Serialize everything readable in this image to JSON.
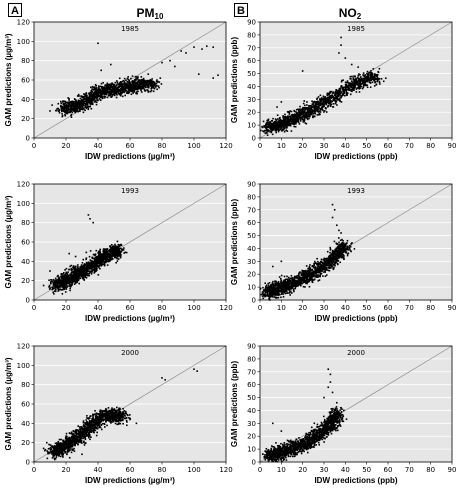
{
  "panels": {
    "a": {
      "tag": "A",
      "title": "PM",
      "title_sub": "10"
    },
    "b": {
      "tag": "B",
      "title": "NO",
      "title_sub": "2"
    }
  },
  "colors": {
    "plot_bg": "#e6e6e6",
    "points": "#000000",
    "grid": "#ffffff",
    "diagonal": "#8c8c8c"
  },
  "chart_data": [
    {
      "id": "pm-1985",
      "type": "scatter",
      "title": "1985",
      "xlabel": "IDW predictions (µg/m³)",
      "ylabel": "GAM predictions (µg/m³)",
      "xlim": [
        0,
        120
      ],
      "ylim": [
        0,
        120
      ],
      "xticks": [
        0,
        20,
        40,
        60,
        80,
        100,
        120
      ],
      "yticks": [
        0,
        20,
        40,
        60,
        80,
        100,
        120
      ],
      "grid": true,
      "reference_line": "1:1",
      "cloud": [
        [
          18,
          30
        ],
        [
          25,
          32
        ],
        [
          30,
          36
        ],
        [
          35,
          40
        ],
        [
          40,
          46
        ],
        [
          45,
          50
        ],
        [
          50,
          50
        ],
        [
          55,
          52
        ],
        [
          60,
          54
        ],
        [
          65,
          55
        ],
        [
          70,
          56
        ],
        [
          75,
          56
        ]
      ],
      "outliers": [
        [
          40,
          98
        ],
        [
          48,
          76
        ],
        [
          42,
          70
        ],
        [
          80,
          78
        ],
        [
          85,
          80
        ],
        [
          88,
          74
        ],
        [
          92,
          90
        ],
        [
          95,
          88
        ],
        [
          100,
          94
        ],
        [
          105,
          92
        ],
        [
          108,
          95
        ],
        [
          112,
          94
        ],
        [
          103,
          66
        ],
        [
          115,
          65
        ],
        [
          112,
          62
        ],
        [
          10,
          28
        ]
      ]
    },
    {
      "id": "no2-1985",
      "type": "scatter",
      "title": "1985",
      "xlabel": "IDW predictions (ppb)",
      "ylabel": "GAM predictions (ppb)",
      "xlim": [
        0,
        90
      ],
      "ylim": [
        0,
        90
      ],
      "xticks": [
        0,
        10,
        20,
        30,
        40,
        50,
        60,
        70,
        80,
        90
      ],
      "yticks": [
        0,
        10,
        20,
        30,
        40,
        50,
        60,
        70,
        80,
        90
      ],
      "grid": true,
      "reference_line": "1:1",
      "cloud": [
        [
          4,
          8
        ],
        [
          8,
          10
        ],
        [
          12,
          12
        ],
        [
          16,
          15
        ],
        [
          20,
          18
        ],
        [
          25,
          22
        ],
        [
          30,
          27
        ],
        [
          35,
          32
        ],
        [
          40,
          38
        ],
        [
          45,
          42
        ],
        [
          50,
          46
        ],
        [
          55,
          48
        ]
      ],
      "outliers": [
        [
          38,
          78
        ],
        [
          38,
          72
        ],
        [
          37,
          66
        ],
        [
          40,
          62
        ],
        [
          43,
          57
        ],
        [
          46,
          55
        ],
        [
          20,
          52
        ],
        [
          52,
          50
        ],
        [
          56,
          46
        ],
        [
          58,
          44
        ],
        [
          8,
          24
        ],
        [
          10,
          28
        ]
      ]
    },
    {
      "id": "pm-1993",
      "type": "scatter",
      "title": "1993",
      "xlabel": "IDW predictions (µg/m³)",
      "ylabel": "GAM predictions (µg/m³)",
      "xlim": [
        0,
        120
      ],
      "ylim": [
        0,
        120
      ],
      "xticks": [
        0,
        20,
        40,
        60,
        80,
        100,
        120
      ],
      "yticks": [
        0,
        20,
        40,
        60,
        80,
        100,
        120
      ],
      "grid": true,
      "reference_line": "1:1",
      "cloud": [
        [
          14,
          15
        ],
        [
          18,
          18
        ],
        [
          22,
          22
        ],
        [
          26,
          26
        ],
        [
          30,
          30
        ],
        [
          34,
          33
        ],
        [
          38,
          38
        ],
        [
          42,
          42
        ],
        [
          46,
          46
        ],
        [
          50,
          50
        ],
        [
          53,
          51
        ]
      ],
      "outliers": [
        [
          34,
          88
        ],
        [
          35,
          84
        ],
        [
          37,
          80
        ],
        [
          10,
          30
        ],
        [
          22,
          48
        ],
        [
          26,
          45
        ],
        [
          52,
          55
        ],
        [
          56,
          52
        ],
        [
          12,
          8
        ],
        [
          6,
          15
        ]
      ]
    },
    {
      "id": "no2-1993",
      "type": "scatter",
      "title": "1993",
      "xlabel": "IDW predictions (ppb)",
      "ylabel": "GAM predictions (ppb)",
      "xlim": [
        0,
        90
      ],
      "ylim": [
        0,
        90
      ],
      "xticks": [
        0,
        10,
        20,
        30,
        40,
        50,
        60,
        70,
        80,
        90
      ],
      "yticks": [
        0,
        10,
        20,
        30,
        40,
        50,
        60,
        70,
        80,
        90
      ],
      "grid": true,
      "reference_line": "1:1",
      "cloud": [
        [
          3,
          5
        ],
        [
          6,
          8
        ],
        [
          10,
          10
        ],
        [
          14,
          12
        ],
        [
          18,
          15
        ],
        [
          22,
          18
        ],
        [
          26,
          22
        ],
        [
          30,
          26
        ],
        [
          33,
          30
        ],
        [
          36,
          35
        ],
        [
          38,
          40
        ],
        [
          40,
          42
        ]
      ],
      "outliers": [
        [
          34,
          74
        ],
        [
          35,
          70
        ],
        [
          34,
          64
        ],
        [
          36,
          58
        ],
        [
          37,
          54
        ],
        [
          38,
          52
        ],
        [
          41,
          46
        ],
        [
          6,
          26
        ],
        [
          10,
          30
        ],
        [
          42,
          40
        ]
      ]
    },
    {
      "id": "pm-2000",
      "type": "scatter",
      "title": "2000",
      "xlabel": "IDW predictions (µg/m³)",
      "ylabel": "GAM predictions (µg/m³)",
      "xlim": [
        0,
        120
      ],
      "ylim": [
        0,
        120
      ],
      "xticks": [
        0,
        20,
        40,
        60,
        80,
        100,
        120
      ],
      "yticks": [
        0,
        20,
        40,
        60,
        80,
        100,
        120
      ],
      "grid": true,
      "reference_line": "1:1",
      "cloud": [
        [
          12,
          10
        ],
        [
          16,
          13
        ],
        [
          20,
          17
        ],
        [
          24,
          22
        ],
        [
          28,
          27
        ],
        [
          32,
          32
        ],
        [
          36,
          38
        ],
        [
          40,
          44
        ],
        [
          44,
          48
        ],
        [
          48,
          49
        ],
        [
          52,
          48
        ],
        [
          56,
          46
        ]
      ],
      "outliers": [
        [
          80,
          87
        ],
        [
          82,
          85
        ],
        [
          100,
          96
        ],
        [
          102,
          94
        ],
        [
          8,
          20
        ],
        [
          6,
          14
        ],
        [
          30,
          8
        ],
        [
          60,
          44
        ],
        [
          64,
          40
        ],
        [
          58,
          38
        ]
      ]
    },
    {
      "id": "no2-2000",
      "type": "scatter",
      "title": "2000",
      "xlabel": "IDW predictions (ppb)",
      "ylabel": "GAM predictions (ppb)",
      "xlim": [
        0,
        90
      ],
      "ylim": [
        0,
        90
      ],
      "xticks": [
        0,
        10,
        20,
        30,
        40,
        50,
        60,
        70,
        80,
        90
      ],
      "yticks": [
        0,
        10,
        20,
        30,
        40,
        50,
        60,
        70,
        80,
        90
      ],
      "grid": true,
      "reference_line": "1:1",
      "cloud": [
        [
          4,
          4
        ],
        [
          7,
          6
        ],
        [
          10,
          8
        ],
        [
          14,
          10
        ],
        [
          18,
          12
        ],
        [
          22,
          15
        ],
        [
          25,
          18
        ],
        [
          28,
          22
        ],
        [
          31,
          26
        ],
        [
          33,
          30
        ],
        [
          35,
          34
        ],
        [
          37,
          38
        ]
      ],
      "outliers": [
        [
          32,
          72
        ],
        [
          33,
          68
        ],
        [
          33,
          62
        ],
        [
          32,
          58
        ],
        [
          34,
          54
        ],
        [
          30,
          50
        ],
        [
          36,
          46
        ],
        [
          38,
          42
        ],
        [
          6,
          30
        ],
        [
          10,
          24
        ]
      ]
    }
  ]
}
